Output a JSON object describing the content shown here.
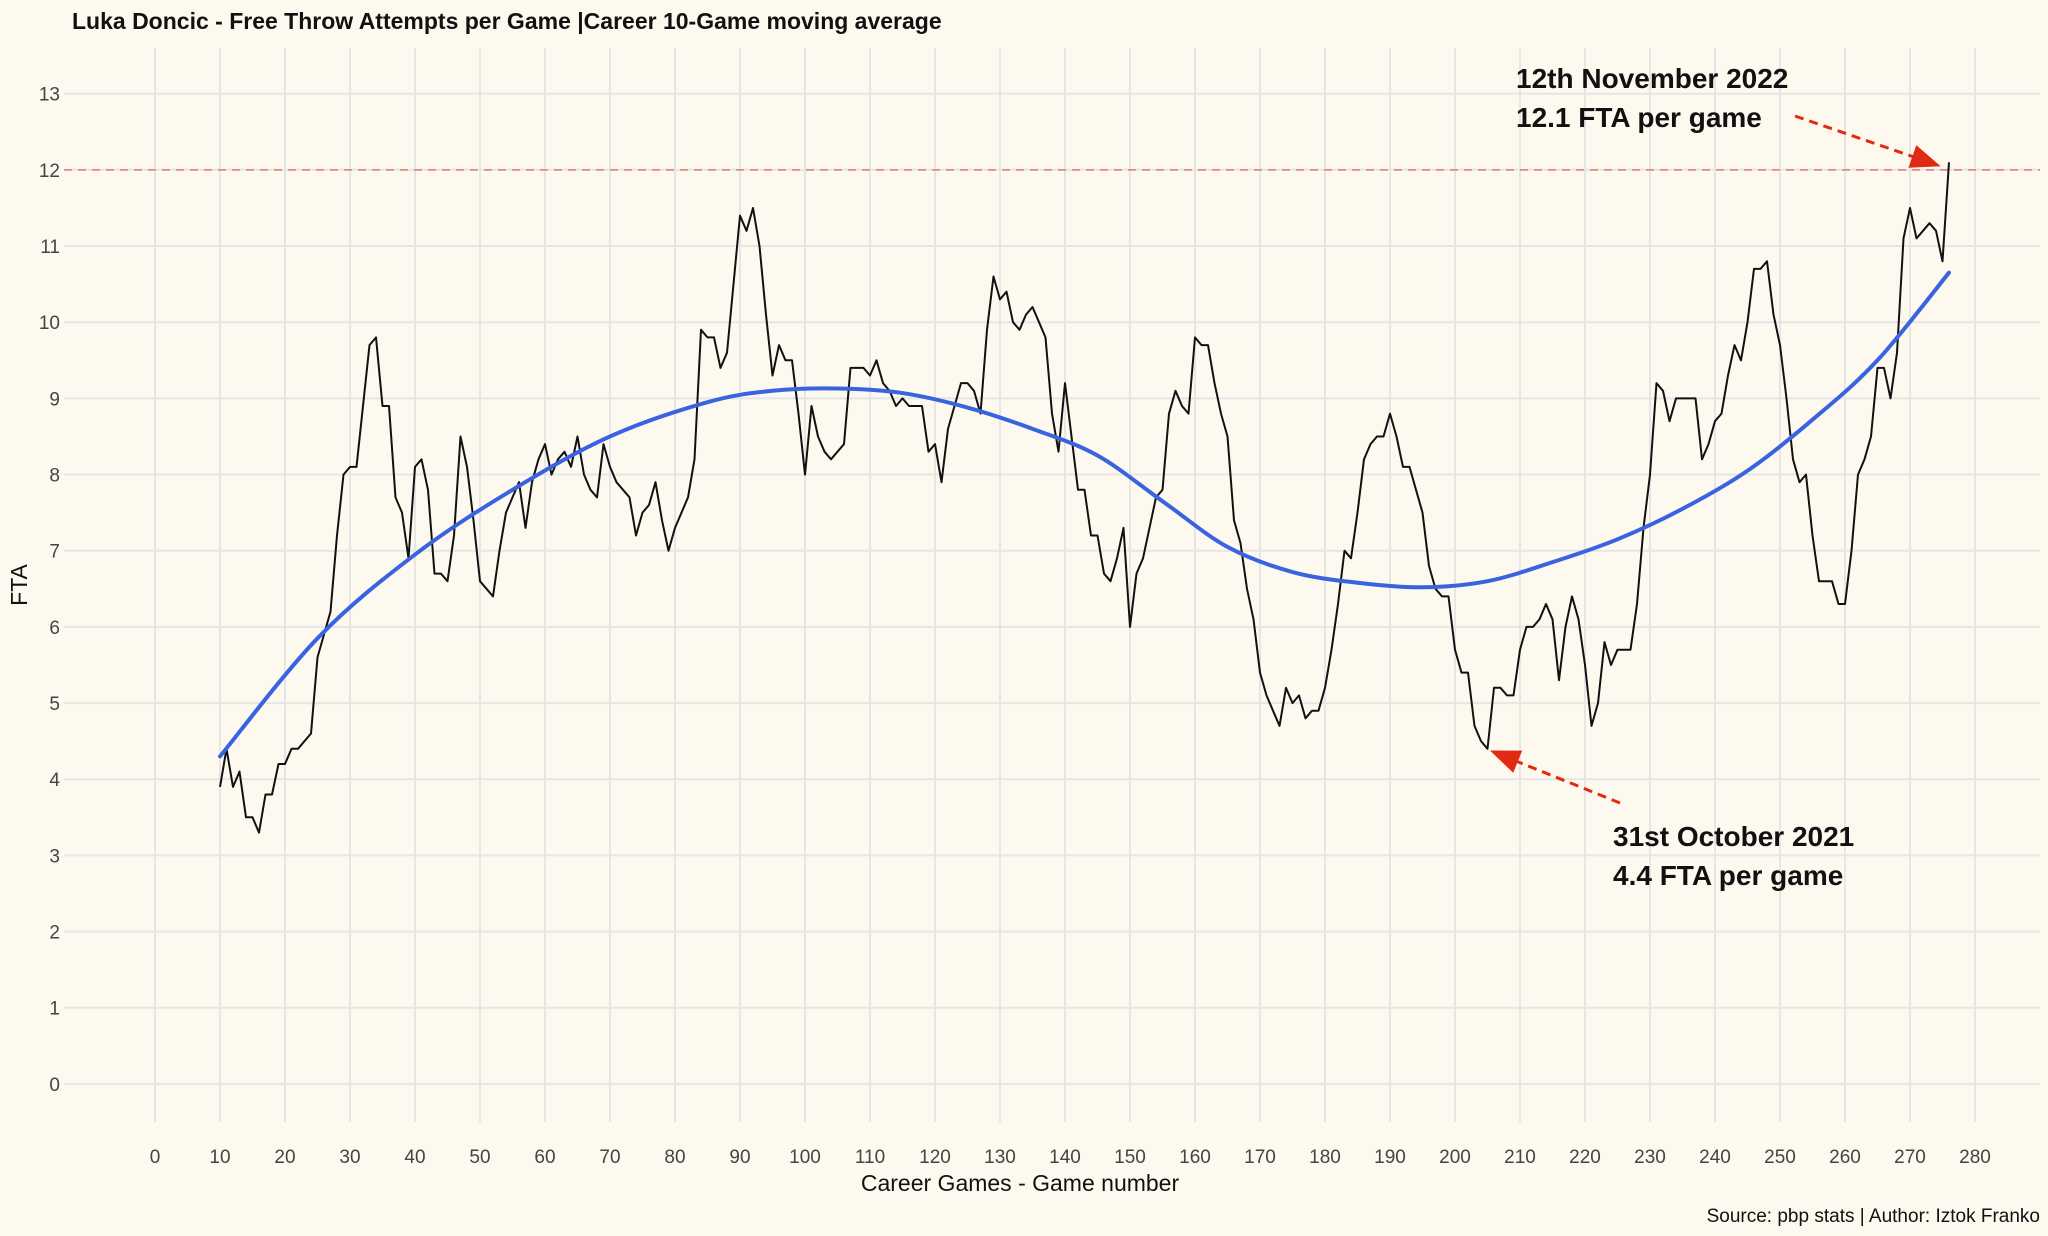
{
  "chart_data": {
    "type": "line",
    "title": "Luka Doncic - Free Throw Attempts per Game |Career 10-Game moving average",
    "xlabel": "Career Games - Game number",
    "ylabel": "FTA",
    "xlim": [
      -14,
      290
    ],
    "ylim": [
      -0.5,
      13.6
    ],
    "xticks": [
      0,
      10,
      20,
      30,
      40,
      50,
      60,
      70,
      80,
      90,
      100,
      110,
      120,
      130,
      140,
      150,
      160,
      170,
      180,
      190,
      200,
      210,
      220,
      230,
      240,
      250,
      260,
      270,
      280
    ],
    "yticks": [
      0,
      1,
      2,
      3,
      4,
      5,
      6,
      7,
      8,
      9,
      10,
      11,
      12,
      13
    ],
    "grid": true,
    "reference_line": {
      "y": 12,
      "color": "#e07b7b"
    },
    "series": [
      {
        "values_kind": "moving-average",
        "color": "#111111",
        "x": [
          10,
          11,
          12,
          13,
          14,
          15,
          16,
          17,
          18,
          19,
          20,
          21,
          22,
          23,
          24,
          25,
          26,
          27,
          28,
          29,
          30,
          31,
          32,
          33,
          34,
          35,
          36,
          37,
          38,
          39,
          40,
          41,
          42,
          43,
          44,
          45,
          46,
          47,
          48,
          49,
          50,
          51,
          52,
          53,
          54,
          55,
          56,
          57,
          58,
          59,
          60,
          61,
          62,
          63,
          64,
          65,
          66,
          67,
          68,
          69,
          70,
          71,
          72,
          73,
          74,
          75,
          76,
          77,
          78,
          79,
          80,
          81,
          82,
          83,
          84,
          85,
          86,
          87,
          88,
          89,
          90,
          91,
          92,
          93,
          94,
          95,
          96,
          97,
          98,
          99,
          100,
          101,
          102,
          103,
          104,
          105,
          106,
          107,
          108,
          109,
          110,
          111,
          112,
          113,
          114,
          115,
          116,
          117,
          118,
          119,
          120,
          121,
          122,
          123,
          124,
          125,
          126,
          127,
          128,
          129,
          130,
          131,
          132,
          133,
          134,
          135,
          136,
          137,
          138,
          139,
          140,
          141,
          142,
          143,
          144,
          145,
          146,
          147,
          148,
          149,
          150,
          151,
          152,
          153,
          154,
          155,
          156,
          157,
          158,
          159,
          160,
          161,
          162,
          163,
          164,
          165,
          166,
          167,
          168,
          169,
          170,
          171,
          172,
          173,
          174,
          175,
          176,
          177,
          178,
          179,
          180,
          181,
          182,
          183,
          184,
          185,
          186,
          187,
          188,
          189,
          190,
          191,
          192,
          193,
          194,
          195,
          196,
          197,
          198,
          199,
          200,
          201,
          202,
          203,
          204,
          205,
          206,
          207,
          208,
          209,
          210,
          211,
          212,
          213,
          214,
          215,
          216,
          217,
          218,
          219,
          220,
          221,
          222,
          223,
          224,
          225,
          226,
          227,
          228,
          229,
          230,
          231,
          232,
          233,
          234,
          235,
          236,
          237,
          238,
          239,
          240,
          241,
          242,
          243,
          244,
          245,
          246,
          247,
          248,
          249,
          250,
          251,
          252,
          253,
          254,
          255,
          256,
          257,
          258,
          259,
          260,
          261,
          262,
          263,
          264,
          265,
          266,
          267,
          268,
          269,
          270,
          271,
          272,
          273,
          274,
          275,
          276
        ],
        "values": [
          3.9,
          4.4,
          3.9,
          4.1,
          3.5,
          3.5,
          3.3,
          3.8,
          3.8,
          4.2,
          4.2,
          4.4,
          4.4,
          4.5,
          4.6,
          5.6,
          5.9,
          6.2,
          7.2,
          8.0,
          8.1,
          8.1,
          8.9,
          9.7,
          9.8,
          8.9,
          8.9,
          7.7,
          7.5,
          6.9,
          8.1,
          8.2,
          7.8,
          6.7,
          6.7,
          6.6,
          7.2,
          8.5,
          8.1,
          7.4,
          6.6,
          6.5,
          6.4,
          7.0,
          7.5,
          7.7,
          7.9,
          7.3,
          7.9,
          8.2,
          8.4,
          8.0,
          8.2,
          8.3,
          8.1,
          8.5,
          8.0,
          7.8,
          7.7,
          8.4,
          8.1,
          7.9,
          7.8,
          7.7,
          7.2,
          7.5,
          7.6,
          7.9,
          7.4,
          7.0,
          7.3,
          7.5,
          7.7,
          8.2,
          9.9,
          9.8,
          9.8,
          9.4,
          9.6,
          10.5,
          11.4,
          11.2,
          11.5,
          11.0,
          10.1,
          9.3,
          9.7,
          9.5,
          9.5,
          8.8,
          8.0,
          8.9,
          8.5,
          8.3,
          8.2,
          8.3,
          8.4,
          9.4,
          9.4,
          9.4,
          9.3,
          9.5,
          9.2,
          9.1,
          8.9,
          9.0,
          8.9,
          8.9,
          8.9,
          8.3,
          8.4,
          7.9,
          8.6,
          8.9,
          9.2,
          9.2,
          9.1,
          8.8,
          9.9,
          10.6,
          10.3,
          10.4,
          10.0,
          9.9,
          10.1,
          10.2,
          10.0,
          9.8,
          8.8,
          8.3,
          9.2,
          8.5,
          7.8,
          7.8,
          7.2,
          7.2,
          6.7,
          6.6,
          6.9,
          7.3,
          6.0,
          6.7,
          6.9,
          7.3,
          7.7,
          7.8,
          8.8,
          9.1,
          8.9,
          8.8,
          9.8,
          9.7,
          9.7,
          9.2,
          8.8,
          8.5,
          7.4,
          7.1,
          6.5,
          6.1,
          5.4,
          5.1,
          4.9,
          4.7,
          5.2,
          5.0,
          5.1,
          4.8,
          4.9,
          4.9,
          5.2,
          5.7,
          6.3,
          7.0,
          6.9,
          7.5,
          8.2,
          8.4,
          8.5,
          8.5,
          8.8,
          8.5,
          8.1,
          8.1,
          7.8,
          7.5,
          6.8,
          6.5,
          6.4,
          6.4,
          5.7,
          5.4,
          5.4,
          4.7,
          4.5,
          4.4,
          5.2,
          5.2,
          5.1,
          5.1,
          5.7,
          6.0,
          6.0,
          6.1,
          6.3,
          6.1,
          5.3,
          6.0,
          6.4,
          6.1,
          5.5,
          4.7,
          5.0,
          5.8,
          5.5,
          5.7,
          5.7,
          5.7,
          6.3,
          7.3,
          8.0,
          9.2,
          9.1,
          8.7,
          9.0,
          9.0,
          9.0,
          9.0,
          8.2,
          8.4,
          8.7,
          8.8,
          9.3,
          9.7,
          9.5,
          10.0,
          10.7,
          10.7,
          10.8,
          10.1,
          9.7,
          9.0,
          8.2,
          7.9,
          8.0,
          7.2,
          6.6,
          6.6,
          6.6,
          6.3,
          6.3,
          7.0,
          8.0,
          8.2,
          8.5,
          9.4,
          9.4,
          9.0,
          9.6,
          11.1,
          11.5,
          11.1,
          11.2,
          11.3,
          11.2,
          10.8,
          12.1
        ]
      },
      {
        "values_kind": "smoothed-trend",
        "color": "#3a63e0",
        "x": [
          10,
          25,
          40,
          55,
          70,
          85,
          95,
          105,
          115,
          125,
          135,
          145,
          155,
          165,
          175,
          185,
          195,
          205,
          215,
          225,
          235,
          245,
          255,
          265,
          276
        ],
        "values": [
          4.3,
          5.85,
          6.95,
          7.8,
          8.5,
          8.95,
          9.1,
          9.13,
          9.07,
          8.88,
          8.6,
          8.25,
          7.65,
          7.05,
          6.72,
          6.58,
          6.52,
          6.6,
          6.85,
          7.15,
          7.55,
          8.05,
          8.72,
          9.5,
          10.65
        ]
      }
    ],
    "annotations": [
      {
        "lines": [
          "12th November 2022",
          "12.1 FTA per game"
        ],
        "point": {
          "x": 276,
          "y": 12.1
        }
      },
      {
        "lines": [
          "31st October 2021",
          "4.4 FTA per game"
        ],
        "point": {
          "x": 205,
          "y": 4.4
        }
      }
    ]
  },
  "source": "Source: pbp stats | Author: Iztok Franko"
}
